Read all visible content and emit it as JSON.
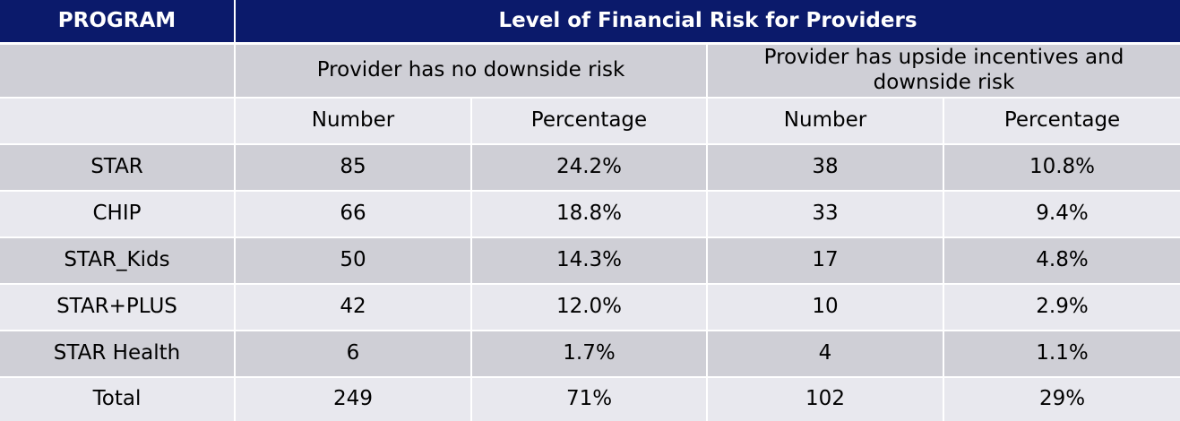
{
  "header": {
    "program_label": "PROGRAM",
    "title": "Level of Financial Risk for Providers"
  },
  "groups": {
    "no_risk": "Provider has no downside risk",
    "upside_downside": "Provider has upside incentives and downside risk"
  },
  "columns": {
    "number": "Number",
    "percentage": "Percentage"
  },
  "rows": [
    {
      "program": "STAR",
      "no_risk_number": "85",
      "no_risk_pct": "24.2%",
      "updown_number": "38",
      "updown_pct": "10.8%"
    },
    {
      "program": "CHIP",
      "no_risk_number": "66",
      "no_risk_pct": "18.8%",
      "updown_number": "33",
      "updown_pct": "9.4%"
    },
    {
      "program": "STAR_Kids",
      "no_risk_number": "50",
      "no_risk_pct": "14.3%",
      "updown_number": "17",
      "updown_pct": "4.8%"
    },
    {
      "program": "STAR+PLUS",
      "no_risk_number": "42",
      "no_risk_pct": "12.0%",
      "updown_number": "10",
      "updown_pct": "2.9%"
    },
    {
      "program": "STAR Health",
      "no_risk_number": "6",
      "no_risk_pct": "1.7%",
      "updown_number": "4",
      "updown_pct": "1.1%"
    },
    {
      "program": "Total",
      "no_risk_number": "249",
      "no_risk_pct": "71%",
      "updown_number": "102",
      "updown_pct": "29%"
    }
  ],
  "colors": {
    "header_bg": "#0b1a6b",
    "row_dark": "#cfcfd6",
    "row_light": "#e8e8ee"
  }
}
